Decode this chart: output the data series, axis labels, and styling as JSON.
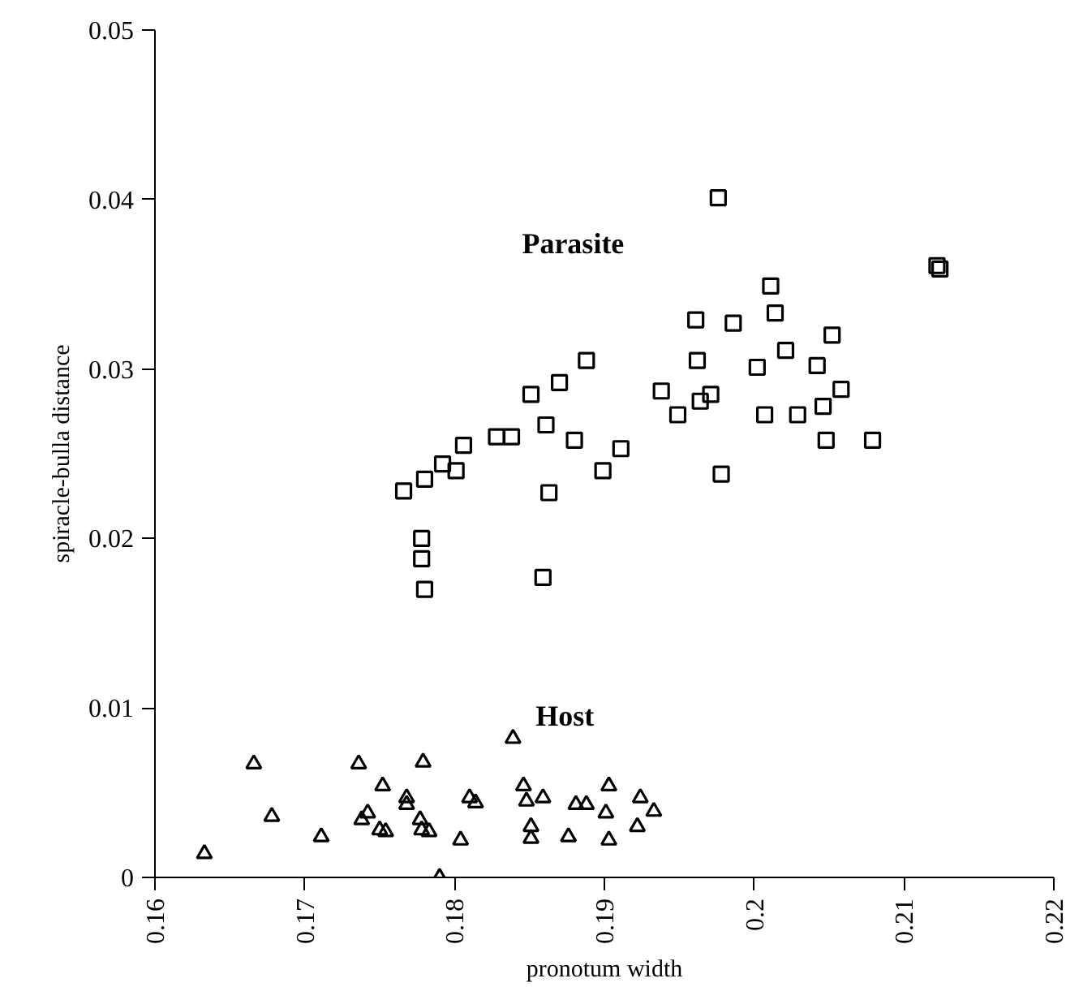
{
  "chart_data": {
    "type": "scatter",
    "xlabel": "pronotum width",
    "ylabel": "spiracle-bulla distance",
    "xlim": [
      0.16,
      0.22
    ],
    "xticks": [
      0.16,
      0.17,
      0.18,
      0.19,
      0.2,
      0.21,
      0.22
    ],
    "ylim": [
      0,
      0.05
    ],
    "yticks": [
      0,
      0.01,
      0.02,
      0.03,
      0.04,
      0.05
    ],
    "grid": false,
    "legend": false,
    "series": [
      {
        "name": "Parasite",
        "color": "#000000",
        "marker": "square",
        "x": [
          0.1766,
          0.178,
          0.1792,
          0.1801,
          0.1806,
          0.1828,
          0.1838,
          0.1851,
          0.187,
          0.1888,
          0.1861,
          0.188,
          0.1911,
          0.1899,
          0.1863,
          0.1778,
          0.1778,
          0.178,
          0.1859,
          0.1976,
          0.1938,
          0.1949,
          0.1962,
          0.1961,
          0.1986,
          0.1964,
          0.1971,
          0.1978,
          0.2002,
          0.2011,
          0.2014,
          0.2021,
          0.2007,
          0.2029,
          0.2042,
          0.2046,
          0.2052,
          0.2058,
          0.2048,
          0.2079,
          0.2122,
          0.2124
        ],
        "values": [
          0.0228,
          0.0235,
          0.0244,
          0.024,
          0.0255,
          0.026,
          0.026,
          0.0285,
          0.0292,
          0.0305,
          0.0267,
          0.0258,
          0.0253,
          0.024,
          0.0227,
          0.02,
          0.0188,
          0.017,
          0.0177,
          0.0401,
          0.0287,
          0.0273,
          0.0305,
          0.0329,
          0.0327,
          0.0281,
          0.0285,
          0.0238,
          0.0301,
          0.0349,
          0.0333,
          0.0311,
          0.0273,
          0.0273,
          0.0302,
          0.0278,
          0.032,
          0.0288,
          0.0258,
          0.0258,
          0.0361,
          0.0359
        ]
      },
      {
        "name": "Host",
        "color": "#000000",
        "marker": "triangle",
        "x": [
          0.1633,
          0.1666,
          0.1678,
          0.1711,
          0.1736,
          0.1738,
          0.1742,
          0.1752,
          0.175,
          0.1754,
          0.1768,
          0.1768,
          0.1777,
          0.1779,
          0.1778,
          0.1783,
          0.179,
          0.1804,
          0.181,
          0.1814,
          0.1839,
          0.1846,
          0.1848,
          0.1859,
          0.1851,
          0.1851,
          0.1876,
          0.1881,
          0.1888,
          0.1903,
          0.1901,
          0.1903,
          0.1924,
          0.1922,
          0.1933
        ],
        "values": [
          0.0014,
          0.0067,
          0.0036,
          0.0024,
          0.0067,
          0.0034,
          0.0038,
          0.0054,
          0.0028,
          0.0027,
          0.0047,
          0.0043,
          0.0034,
          0.0068,
          0.0028,
          0.0027,
          0.0,
          0.0022,
          0.0047,
          0.0044,
          0.0082,
          0.0054,
          0.0045,
          0.0047,
          0.003,
          0.0023,
          0.0024,
          0.0043,
          0.0043,
          0.0054,
          0.0038,
          0.0022,
          0.0047,
          0.003,
          0.0039
        ]
      }
    ]
  }
}
